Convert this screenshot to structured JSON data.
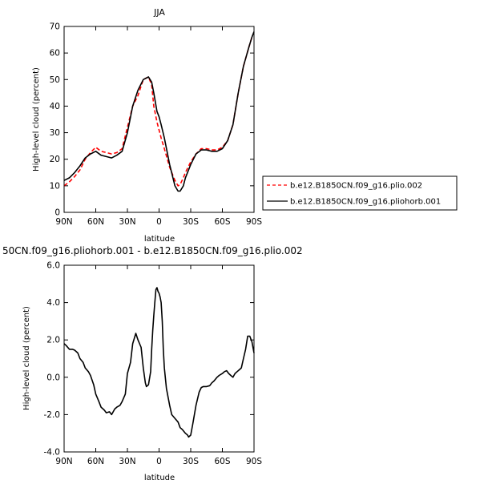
{
  "chart_data": [
    {
      "type": "line",
      "title": "JJA",
      "xlabel": "latitude",
      "ylabel": "High-level cloud (percent)",
      "xlim": [
        90,
        -90
      ],
      "ylim": [
        0,
        70
      ],
      "x_ticks": [
        90,
        60,
        30,
        0,
        -30,
        -60,
        -90
      ],
      "x_tick_labels": [
        "90N",
        "60N",
        "30N",
        "0",
        "30S",
        "60S",
        "90S"
      ],
      "y_ticks": [
        0,
        10,
        20,
        30,
        40,
        50,
        60,
        70
      ],
      "y_tick_labels": [
        "0",
        "10",
        "20",
        "30",
        "40",
        "50",
        "60",
        "70"
      ],
      "grid": false,
      "legend": "right",
      "series": [
        {
          "name": "b.e12.B1850CN.f09_g16.plio.002",
          "color": "#ff0000",
          "dash": true,
          "x": [
            90,
            85,
            80,
            75,
            70,
            65,
            60,
            55,
            50,
            45,
            40,
            35,
            30,
            25,
            20,
            15,
            10,
            7,
            5,
            2,
            0,
            -2,
            -5,
            -10,
            -15,
            -18,
            -20,
            -23,
            -25,
            -30,
            -35,
            -40,
            -45,
            -50,
            -55,
            -60,
            -65,
            -70,
            -75,
            -80,
            -85,
            -88,
            -90
          ],
          "y": [
            10,
            11.5,
            13.5,
            16,
            20,
            22.5,
            24.5,
            23,
            22.5,
            22,
            22.5,
            24,
            32,
            40,
            44,
            50,
            51,
            48,
            40,
            34,
            31,
            28,
            24,
            17,
            12,
            10,
            10.5,
            13,
            15,
            19,
            22,
            24,
            24,
            23.5,
            23.5,
            24.5,
            27,
            33,
            45,
            55,
            62,
            66,
            66
          ]
        },
        {
          "name": "b.e12.B1850CN.f09_g16.pliohorb.001",
          "color": "#000000",
          "dash": false,
          "x": [
            90,
            85,
            80,
            75,
            70,
            65,
            60,
            55,
            50,
            45,
            40,
            35,
            30,
            25,
            20,
            15,
            10,
            7,
            5,
            2,
            0,
            -2,
            -5,
            -10,
            -15,
            -18,
            -20,
            -23,
            -25,
            -30,
            -35,
            -40,
            -45,
            -50,
            -55,
            -60,
            -65,
            -70,
            -75,
            -80,
            -85,
            -88,
            -90
          ],
          "y": [
            12,
            13,
            15,
            17.5,
            20.5,
            22,
            23,
            21.5,
            21,
            20.5,
            21.5,
            23,
            30,
            40,
            46,
            50,
            51,
            49,
            45,
            38,
            36,
            33,
            28,
            18,
            10,
            8,
            8,
            10,
            13,
            18,
            22,
            23.5,
            23.5,
            23,
            23,
            24,
            27,
            33,
            45,
            55,
            62,
            66,
            68
          ]
        }
      ]
    },
    {
      "type": "line",
      "title": "50CN.f09_g16.pliohorb.001 - b.e12.B1850CN.f09_g16.plio.002",
      "xlabel": "latitude",
      "ylabel": "High-level cloud (percent)",
      "xlim": [
        90,
        -90
      ],
      "ylim": [
        -4,
        6
      ],
      "x_ticks": [
        90,
        60,
        30,
        0,
        -30,
        -60,
        -90
      ],
      "x_tick_labels": [
        "90N",
        "60N",
        "30N",
        "0",
        "30S",
        "60S",
        "90S"
      ],
      "y_ticks": [
        -4,
        -2,
        0,
        2,
        4,
        6
      ],
      "y_tick_labels": [
        "-4.0",
        "-2.0",
        "0.0",
        "2.0",
        "4.0",
        "6.0"
      ],
      "grid": false,
      "series": [
        {
          "color": "#000000",
          "x": [
            90,
            88,
            85,
            82,
            80,
            77,
            75,
            72,
            70,
            67,
            65,
            62,
            60,
            57,
            55,
            52,
            50,
            47,
            45,
            42,
            40,
            37,
            35,
            32,
            30,
            27,
            25,
            22,
            20,
            17,
            15,
            13,
            12,
            10,
            8,
            7,
            6,
            5,
            4,
            3,
            2,
            1,
            0,
            -1,
            -2,
            -3,
            -4,
            -5,
            -7,
            -10,
            -12,
            -15,
            -18,
            -20,
            -22,
            -25,
            -27,
            -28,
            -30,
            -32,
            -35,
            -38,
            -40,
            -42,
            -45,
            -48,
            -50,
            -52,
            -55,
            -57,
            -60,
            -62,
            -64,
            -66,
            -68,
            -70,
            -72,
            -74,
            -76,
            -78,
            -80,
            -82,
            -84,
            -86,
            -88,
            -90
          ],
          "y": [
            1.8,
            1.7,
            1.5,
            1.5,
            1.45,
            1.3,
            1.0,
            0.8,
            0.5,
            0.3,
            0.1,
            -0.4,
            -0.9,
            -1.3,
            -1.6,
            -1.75,
            -1.9,
            -1.85,
            -2.0,
            -1.7,
            -1.6,
            -1.5,
            -1.3,
            -0.9,
            0.2,
            0.8,
            1.8,
            2.35,
            2.0,
            1.6,
            0.5,
            -0.3,
            -0.5,
            -0.4,
            0.3,
            1.5,
            2.5,
            3.3,
            4.0,
            4.7,
            4.8,
            4.6,
            4.5,
            4.3,
            4.0,
            3.0,
            1.5,
            0.5,
            -0.6,
            -1.5,
            -2.0,
            -2.2,
            -2.4,
            -2.7,
            -2.8,
            -3.0,
            -3.1,
            -3.2,
            -3.1,
            -2.5,
            -1.5,
            -0.8,
            -0.55,
            -0.5,
            -0.5,
            -0.45,
            -0.3,
            -0.2,
            0.0,
            0.1,
            0.2,
            0.3,
            0.35,
            0.2,
            0.1,
            0.0,
            0.2,
            0.3,
            0.4,
            0.5,
            1.0,
            1.5,
            2.2,
            2.2,
            1.9,
            1.3
          ]
        }
      ]
    }
  ]
}
